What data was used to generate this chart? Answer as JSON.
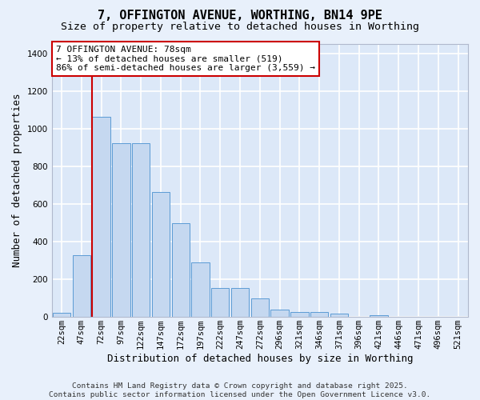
{
  "title_line1": "7, OFFINGTON AVENUE, WORTHING, BN14 9PE",
  "title_line2": "Size of property relative to detached houses in Worthing",
  "xlabel": "Distribution of detached houses by size in Worthing",
  "ylabel": "Number of detached properties",
  "bar_labels": [
    "22sqm",
    "47sqm",
    "72sqm",
    "97sqm",
    "122sqm",
    "147sqm",
    "172sqm",
    "197sqm",
    "222sqm",
    "247sqm",
    "272sqm",
    "296sqm",
    "321sqm",
    "346sqm",
    "371sqm",
    "396sqm",
    "421sqm",
    "446sqm",
    "471sqm",
    "496sqm",
    "521sqm"
  ],
  "bar_values": [
    20,
    330,
    1065,
    925,
    925,
    665,
    500,
    290,
    155,
    155,
    100,
    40,
    25,
    25,
    18,
    0,
    10,
    0,
    0,
    0,
    0
  ],
  "bar_color": "#c5d8f0",
  "bar_edge_color": "#5b9bd5",
  "background_color": "#dce8f8",
  "fig_background_color": "#e8f0fb",
  "grid_color": "#ffffff",
  "vline_color": "#cc0000",
  "annotation_text": "7 OFFINGTON AVENUE: 78sqm\n← 13% of detached houses are smaller (519)\n86% of semi-detached houses are larger (3,559) →",
  "annotation_box_edgecolor": "#cc0000",
  "ylim_max": 1450,
  "yticks": [
    0,
    200,
    400,
    600,
    800,
    1000,
    1200,
    1400
  ],
  "footer_line1": "Contains HM Land Registry data © Crown copyright and database right 2025.",
  "footer_line2": "Contains public sector information licensed under the Open Government Licence v3.0.",
  "title_fontsize": 11,
  "subtitle_fontsize": 9.5,
  "axis_label_fontsize": 9,
  "tick_fontsize": 7.5,
  "annotation_fontsize": 8,
  "footer_fontsize": 6.8
}
